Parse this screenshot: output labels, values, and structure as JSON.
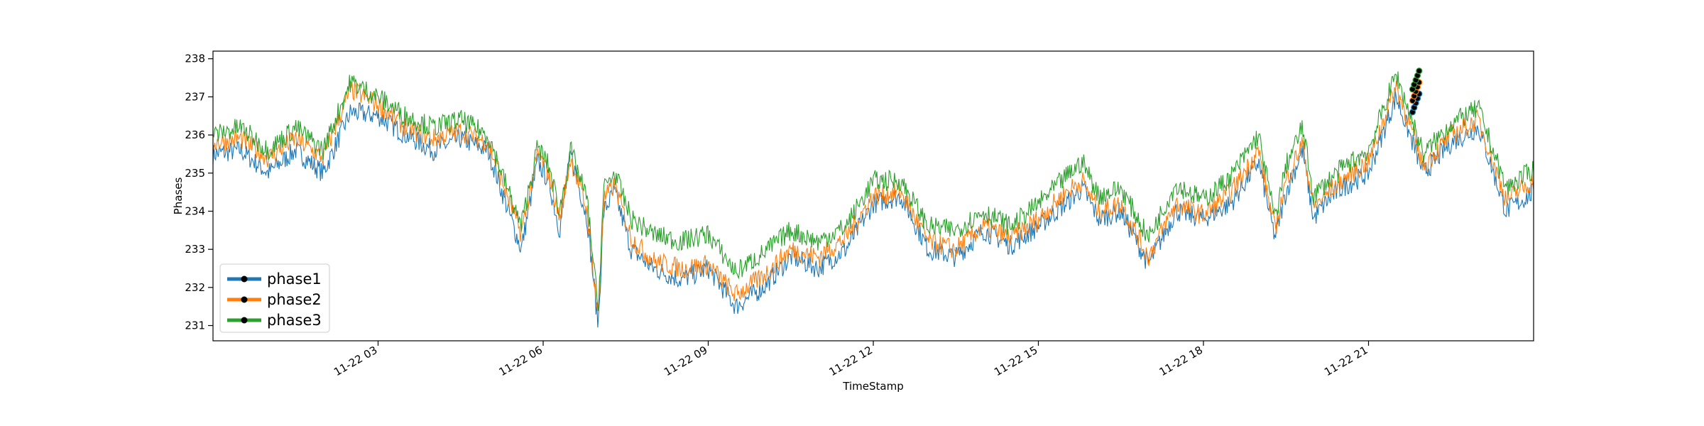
{
  "chart_data": {
    "type": "line",
    "title": "",
    "xlabel": "TimeStamp",
    "ylabel": "Phases",
    "x_range_hours": [
      0.0,
      24.0
    ],
    "ylim": [
      230.6,
      238.2
    ],
    "y_ticks": [
      231,
      232,
      233,
      234,
      235,
      236,
      237,
      238
    ],
    "x_ticks": [
      {
        "label": "11-22 03",
        "hour": 3
      },
      {
        "label": "11-22 06",
        "hour": 6
      },
      {
        "label": "11-22 09",
        "hour": 9
      },
      {
        "label": "11-22 12",
        "hour": 12
      },
      {
        "label": "11-22 15",
        "hour": 15
      },
      {
        "label": "11-22 18",
        "hour": 18
      },
      {
        "label": "11-22 21",
        "hour": 21
      }
    ],
    "grid": false,
    "legend": {
      "placement": "lower-left"
    },
    "series": [
      {
        "name": "phase1",
        "color": "#1f77b4",
        "x": [
          0.0,
          0.5,
          1.0,
          1.5,
          2.0,
          2.5,
          3.0,
          3.5,
          4.0,
          4.5,
          5.0,
          5.3,
          5.6,
          5.9,
          6.1,
          6.3,
          6.5,
          6.8,
          7.0,
          7.1,
          7.3,
          7.6,
          8.0,
          8.5,
          9.0,
          9.5,
          10.0,
          10.5,
          11.0,
          11.5,
          12.0,
          12.5,
          13.0,
          13.5,
          14.0,
          14.5,
          15.0,
          15.5,
          15.8,
          16.1,
          16.5,
          17.0,
          17.5,
          18.0,
          18.5,
          19.0,
          19.3,
          19.5,
          19.8,
          20.0,
          20.2,
          20.5,
          21.0,
          21.5,
          22.0,
          22.5,
          23.0,
          23.5,
          24.0
        ],
        "values": [
          235.5,
          235.6,
          235.0,
          235.6,
          235.0,
          236.6,
          236.5,
          236.0,
          235.6,
          235.9,
          235.6,
          234.3,
          233.0,
          235.3,
          234.8,
          233.5,
          235.5,
          233.8,
          231.0,
          234.0,
          234.5,
          233.0,
          232.5,
          232.2,
          232.5,
          231.5,
          232.0,
          232.8,
          232.5,
          233.0,
          234.2,
          234.4,
          233.0,
          232.8,
          233.5,
          233.1,
          233.6,
          234.2,
          234.6,
          233.8,
          234.0,
          232.6,
          234.0,
          233.8,
          234.2,
          235.3,
          233.3,
          234.5,
          235.6,
          233.8,
          234.2,
          234.6,
          235.0,
          237.0,
          235.0,
          235.8,
          236.2,
          234.0,
          234.5
        ]
      },
      {
        "name": "phase2",
        "color": "#ff7f0e",
        "x": [
          0.0,
          0.5,
          1.0,
          1.5,
          2.0,
          2.5,
          3.0,
          3.5,
          4.0,
          4.5,
          5.0,
          5.3,
          5.6,
          5.9,
          6.1,
          6.3,
          6.5,
          6.8,
          7.0,
          7.1,
          7.3,
          7.6,
          8.0,
          8.5,
          9.0,
          9.5,
          10.0,
          10.5,
          11.0,
          11.5,
          12.0,
          12.5,
          13.0,
          13.5,
          14.0,
          14.5,
          15.0,
          15.5,
          15.8,
          16.1,
          16.5,
          17.0,
          17.5,
          18.0,
          18.5,
          19.0,
          19.3,
          19.5,
          19.8,
          20.0,
          20.2,
          20.5,
          21.0,
          21.5,
          22.0,
          22.5,
          23.0,
          23.5,
          24.0
        ],
        "values": [
          235.8,
          235.9,
          235.4,
          235.9,
          235.4,
          237.2,
          236.8,
          236.2,
          235.9,
          236.1,
          235.8,
          234.6,
          233.4,
          235.5,
          235.0,
          233.8,
          235.4,
          234.0,
          231.2,
          234.3,
          234.7,
          233.3,
          232.7,
          232.5,
          232.6,
          231.8,
          232.3,
          233.0,
          232.8,
          233.3,
          234.4,
          234.5,
          233.2,
          233.0,
          233.6,
          233.3,
          233.8,
          234.5,
          234.8,
          234.0,
          234.2,
          232.8,
          234.2,
          233.9,
          234.5,
          235.6,
          233.5,
          234.8,
          235.8,
          234.1,
          234.4,
          234.8,
          235.3,
          237.3,
          235.2,
          236.0,
          236.4,
          234.3,
          234.8
        ]
      },
      {
        "name": "phase3",
        "color": "#2ca02c",
        "x": [
          0.0,
          0.5,
          1.0,
          1.5,
          2.0,
          2.5,
          3.0,
          3.5,
          4.0,
          4.5,
          5.0,
          5.3,
          5.6,
          5.9,
          6.1,
          6.3,
          6.5,
          6.8,
          7.0,
          7.1,
          7.3,
          7.6,
          8.0,
          8.5,
          9.0,
          9.5,
          10.0,
          10.5,
          11.0,
          11.5,
          12.0,
          12.5,
          13.0,
          13.5,
          14.0,
          14.5,
          15.0,
          15.5,
          15.8,
          16.1,
          16.5,
          17.0,
          17.5,
          18.0,
          18.5,
          19.0,
          19.3,
          19.5,
          19.8,
          20.0,
          20.2,
          20.5,
          21.0,
          21.5,
          22.0,
          22.5,
          23.0,
          23.5,
          24.0
        ],
        "values": [
          236.0,
          236.2,
          235.6,
          236.2,
          235.6,
          237.4,
          237.0,
          236.5,
          236.2,
          236.4,
          236.0,
          234.8,
          233.6,
          235.7,
          235.2,
          234.0,
          235.6,
          234.3,
          231.4,
          234.6,
          235.0,
          233.8,
          233.4,
          233.2,
          233.4,
          232.4,
          232.9,
          233.5,
          233.2,
          233.6,
          234.8,
          234.8,
          233.6,
          233.5,
          234.0,
          233.6,
          234.2,
          234.9,
          235.3,
          234.4,
          234.6,
          233.3,
          234.7,
          234.3,
          234.9,
          236.0,
          233.8,
          235.2,
          236.2,
          234.4,
          234.7,
          235.1,
          235.6,
          237.6,
          235.5,
          236.3,
          236.7,
          234.6,
          235.1
        ]
      }
    ]
  }
}
